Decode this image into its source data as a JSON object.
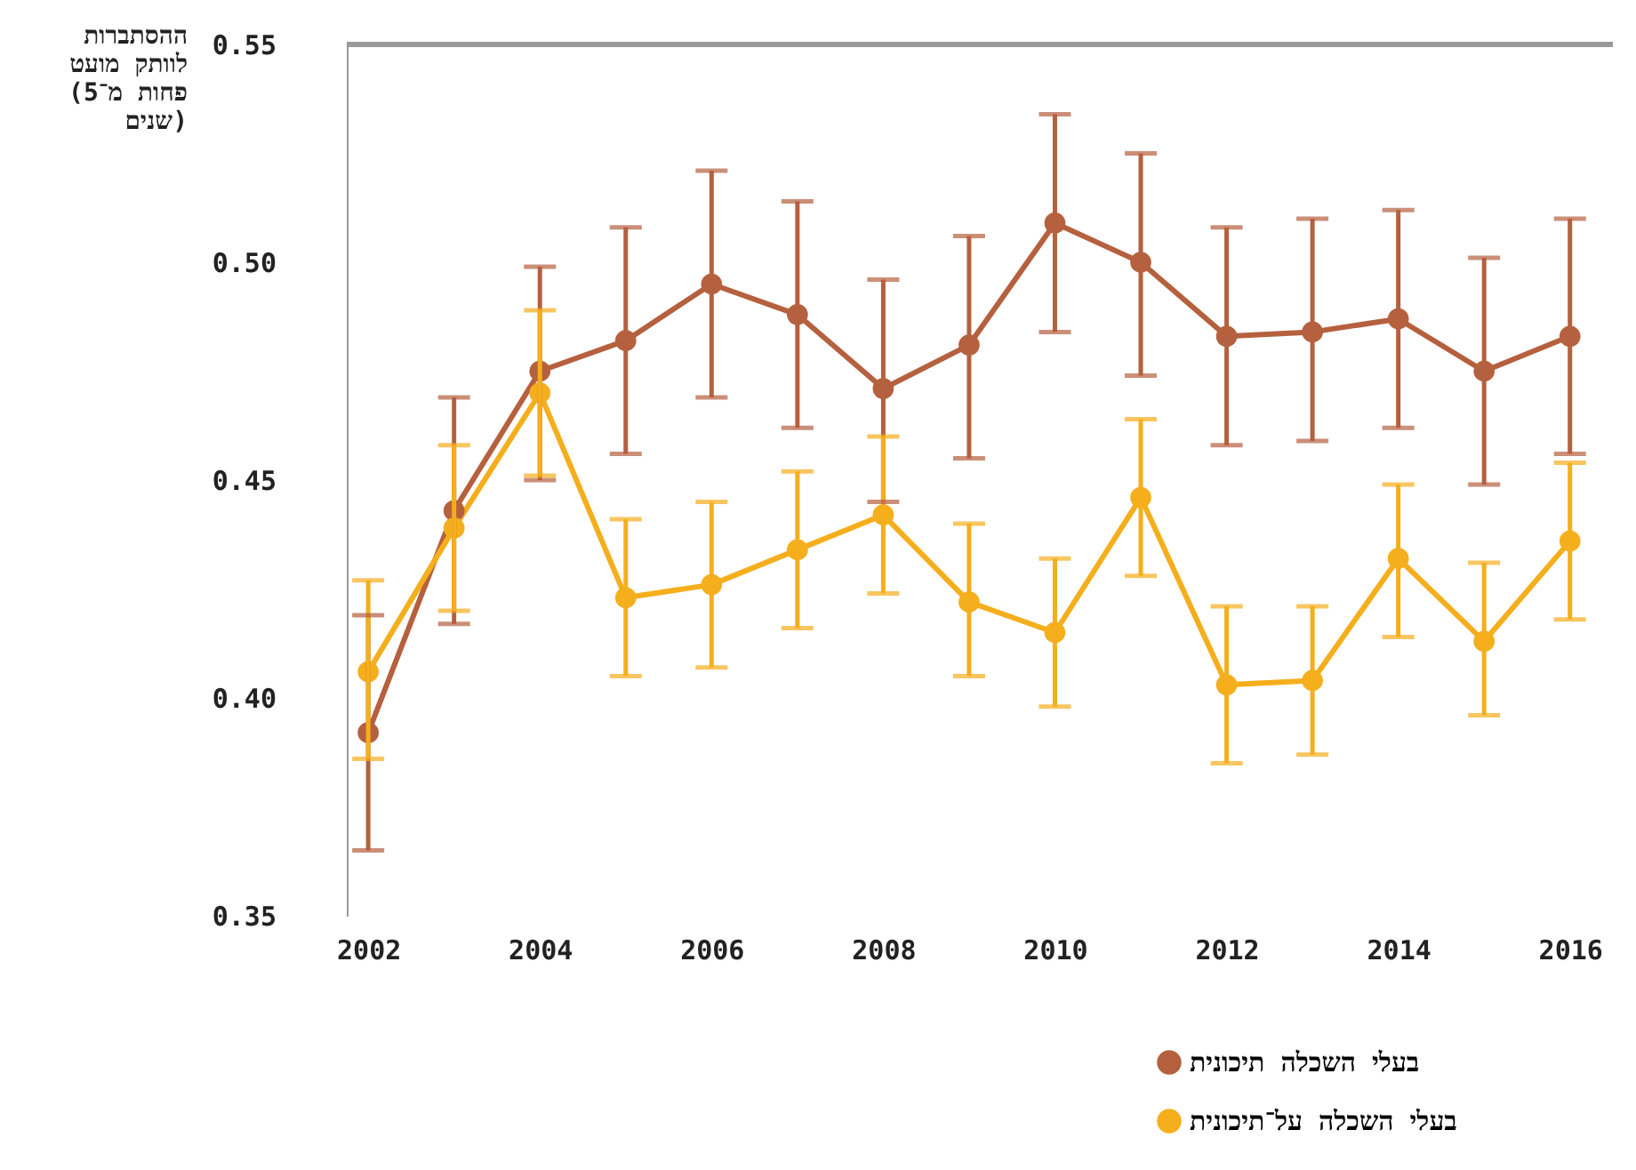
{
  "chart_data": {
    "type": "line",
    "ylabel": "ההסתברות\nלוותק מועט\n(פחות מ־5\nשנים)",
    "x": [
      2002,
      2003,
      2004,
      2005,
      2006,
      2007,
      2008,
      2009,
      2010,
      2011,
      2012,
      2013,
      2014,
      2015,
      2016
    ],
    "series": [
      {
        "name": "בעלי השכלה תיכונית",
        "color": "#b5603e",
        "values": [
          0.392,
          0.443,
          0.475,
          0.482,
          0.495,
          0.488,
          0.471,
          0.481,
          0.509,
          0.5,
          0.483,
          0.484,
          0.487,
          0.475,
          0.483
        ],
        "errors": [
          [
            0.365,
            0.419
          ],
          [
            0.417,
            0.469
          ],
          [
            0.45,
            0.499
          ],
          [
            0.456,
            0.508
          ],
          [
            0.469,
            0.521
          ],
          [
            0.462,
            0.514
          ],
          [
            0.445,
            0.496
          ],
          [
            0.455,
            0.506
          ],
          [
            0.484,
            0.534
          ],
          [
            0.474,
            0.525
          ],
          [
            0.458,
            0.508
          ],
          [
            0.459,
            0.51
          ],
          [
            0.462,
            0.512
          ],
          [
            0.449,
            0.501
          ],
          [
            0.456,
            0.51
          ]
        ]
      },
      {
        "name": "בעלי השכלה על־תיכונית",
        "color": "#f5ae1c",
        "values": [
          0.406,
          0.439,
          0.47,
          0.423,
          0.426,
          0.434,
          0.442,
          0.422,
          0.415,
          0.446,
          0.403,
          0.404,
          0.432,
          0.413,
          0.436
        ],
        "errors": [
          [
            0.386,
            0.427
          ],
          [
            0.42,
            0.458
          ],
          [
            0.451,
            0.489
          ],
          [
            0.405,
            0.441
          ],
          [
            0.407,
            0.445
          ],
          [
            0.416,
            0.452
          ],
          [
            0.424,
            0.46
          ],
          [
            0.405,
            0.44
          ],
          [
            0.398,
            0.432
          ],
          [
            0.428,
            0.464
          ],
          [
            0.385,
            0.421
          ],
          [
            0.387,
            0.421
          ],
          [
            0.414,
            0.449
          ],
          [
            0.396,
            0.431
          ],
          [
            0.418,
            0.454
          ]
        ]
      }
    ],
    "xlim": [
      2001.75,
      2016.5
    ],
    "xticks": [
      2002,
      2004,
      2006,
      2008,
      2010,
      2012,
      2014,
      2016
    ],
    "ylim": [
      0.35,
      0.55
    ],
    "yticks": [
      0.35,
      {
        "value": 0.4,
        "label": "0.40"
      },
      0.45,
      {
        "value": 0.5,
        "label": "0.50"
      },
      0.55
    ],
    "grid": false,
    "legend": "bottom right",
    "marker": "circle",
    "line_style": "solid"
  }
}
